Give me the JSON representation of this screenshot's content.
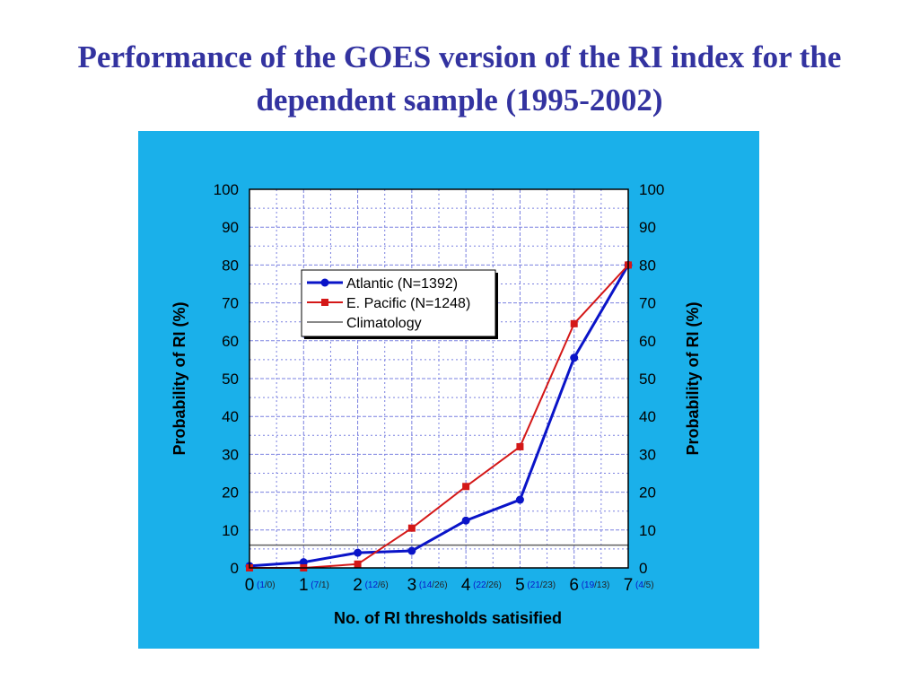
{
  "slide": {
    "title_line1": "Performance of the GOES version of the RI index for the",
    "title_line2": "dependent sample (1995-2002)"
  },
  "colors": {
    "panel_background": "#1ab0ea",
    "plot_background": "#ffffff",
    "grid": "#7a80e0",
    "title": "#3333a0",
    "atlantic": "#0a14c8",
    "pacific": "#d41818",
    "climatology": "#606060",
    "count_atlantic": "#0a14c8",
    "count_pacific": "#222222"
  },
  "chart_data": {
    "type": "line",
    "xlabel": "No. of  RI thresholds satisified",
    "ylabel": "Probability of RI (%)",
    "ylabel_right": "Probability of RI (%)",
    "xlim": [
      0,
      7
    ],
    "ylim": [
      0,
      100
    ],
    "x_ticks": [
      "0",
      "1",
      "2",
      "3",
      "4",
      "5",
      "6",
      "7"
    ],
    "y_ticks": [
      "0",
      "10",
      "20",
      "30",
      "40",
      "50",
      "60",
      "70",
      "80",
      "90",
      "100"
    ],
    "grid": true,
    "legend_position": "upper-left",
    "x": [
      0,
      1,
      2,
      3,
      4,
      5,
      6,
      7
    ],
    "series": [
      {
        "name": "Atlantic (N=1392)",
        "marker": "circle",
        "values": [
          0.5,
          1.5,
          4.0,
          4.5,
          12.5,
          18.0,
          55.5,
          80.0
        ]
      },
      {
        "name": "E. Pacific (N=1248)",
        "marker": "square",
        "values": [
          0.0,
          0.0,
          1.0,
          10.5,
          21.5,
          32.0,
          64.5,
          80.0
        ]
      }
    ],
    "reference_line": {
      "name": "Climatology",
      "value": 6.0
    },
    "sample_counts": [
      {
        "atlantic": "1",
        "pacific": "0"
      },
      {
        "atlantic": "7",
        "pacific": "1"
      },
      {
        "atlantic": "12",
        "pacific": "6"
      },
      {
        "atlantic": "14",
        "pacific": "26"
      },
      {
        "atlantic": "22",
        "pacific": "26"
      },
      {
        "atlantic": "21",
        "pacific": "23"
      },
      {
        "atlantic": "19",
        "pacific": "13"
      },
      {
        "atlantic": "4",
        "pacific": "5"
      }
    ]
  }
}
